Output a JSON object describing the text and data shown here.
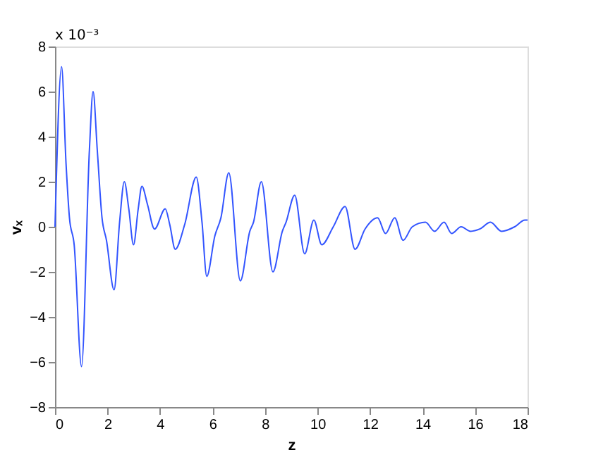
{
  "chart_data": {
    "type": "line",
    "xlabel": "z",
    "ylabel": "vₓ",
    "annotations": [
      "x 10⁻³"
    ],
    "xlim": [
      0,
      18
    ],
    "xticks": [
      0,
      2,
      4,
      6,
      8,
      10,
      12,
      14,
      16,
      18
    ],
    "ylim": [
      -8,
      8
    ],
    "yticks": [
      {
        "value": -8,
        "label": "−8"
      },
      {
        "value": -6,
        "label": "−6"
      },
      {
        "value": -4,
        "label": "−4"
      },
      {
        "value": -2,
        "label": "−2"
      },
      0,
      2,
      4,
      6,
      8
    ],
    "x": [
      0,
      0.25,
      0.42,
      0.55,
      0.73,
      1.01,
      1.31,
      1.45,
      1.61,
      1.79,
      1.96,
      2.25,
      2.46,
      2.64,
      2.81,
      2.99,
      3.17,
      3.31,
      3.52,
      3.79,
      4.2,
      4.37,
      4.58,
      4.94,
      5.38,
      5.6,
      5.78,
      6.09,
      6.32,
      6.62,
      7.06,
      7.42,
      7.56,
      7.86,
      8.3,
      8.66,
      8.8,
      9.13,
      9.51,
      9.86,
      10.16,
      10.6,
      11.05,
      11.43,
      11.81,
      12.29,
      12.59,
      12.94,
      13.26,
      13.61,
      14.11,
      14.46,
      14.82,
      15.11,
      15.47,
      15.83,
      16.18,
      16.59,
      17.01,
      17.51,
      17.9,
      18
    ],
    "series": [
      {
        "color": "#3355ff",
        "values": [
          0,
          7.1,
          2.8,
          0.4,
          -0.8,
          -6.2,
          3.4,
          6.0,
          3.4,
          0.4,
          -0.6,
          -2.8,
          0.2,
          2.0,
          0.8,
          -0.8,
          0.8,
          1.8,
          1.0,
          -0.1,
          0.8,
          0.1,
          -1.0,
          0.1,
          2.2,
          0.2,
          -2.2,
          -0.4,
          0.4,
          2.4,
          -2.4,
          -0.2,
          0.2,
          2.0,
          -2.0,
          -0.2,
          0.2,
          1.4,
          -1.2,
          0.3,
          -0.8,
          0.0,
          0.9,
          -1.0,
          -0.1,
          0.4,
          -0.3,
          0.4,
          -0.6,
          0.0,
          0.2,
          -0.2,
          0.2,
          -0.3,
          0.0,
          -0.2,
          -0.1,
          0.2,
          -0.2,
          0.0,
          0.3,
          0.3
        ]
      }
    ]
  }
}
